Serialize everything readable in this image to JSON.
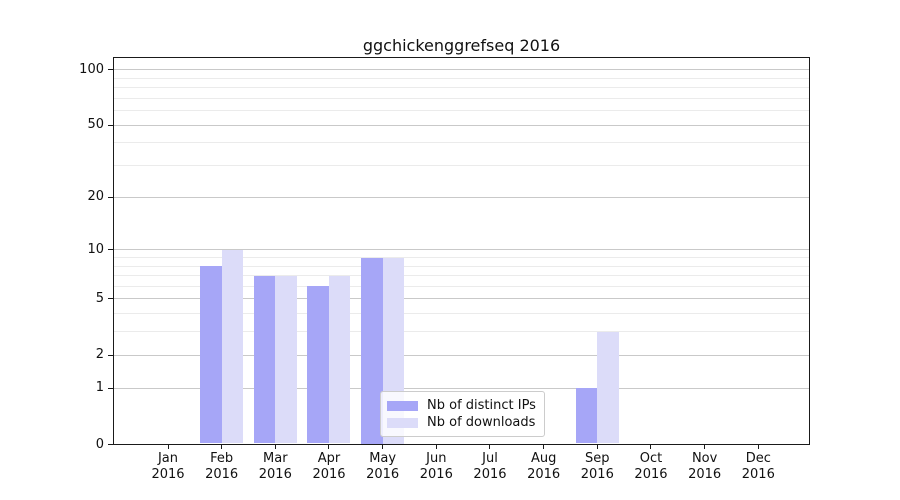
{
  "chart_data": {
    "type": "bar",
    "title": "ggchickenggrefseq 2016",
    "year_label": "2016",
    "categories": [
      "Jan",
      "Feb",
      "Mar",
      "Apr",
      "May",
      "Jun",
      "Jul",
      "Aug",
      "Sep",
      "Oct",
      "Nov",
      "Dec"
    ],
    "series": [
      {
        "name": "Nb of distinct IPs",
        "key": "distinct-ips",
        "color": "#a6a6f7",
        "values": [
          0,
          8,
          7,
          6,
          9,
          0,
          0,
          0,
          1,
          0,
          0,
          0
        ]
      },
      {
        "name": "Nb of downloads",
        "key": "downloads",
        "color": "#dcdcf9",
        "values": [
          0,
          10,
          7,
          7,
          9,
          0,
          0,
          0,
          3,
          0,
          0,
          0
        ]
      }
    ],
    "xlabel": "",
    "ylabel": "",
    "yscale": "log1p",
    "ylim": [
      0,
      116
    ],
    "ytick_labels": [
      100,
      50,
      20,
      10,
      5,
      2,
      1,
      0
    ],
    "grid": true,
    "grid_major_values": [
      1,
      2,
      5,
      10,
      20,
      50,
      100
    ],
    "grid_minor_values": [
      3,
      4,
      6,
      7,
      8,
      9,
      30,
      40,
      60,
      70,
      80,
      90
    ],
    "legend_position": "lower center"
  }
}
